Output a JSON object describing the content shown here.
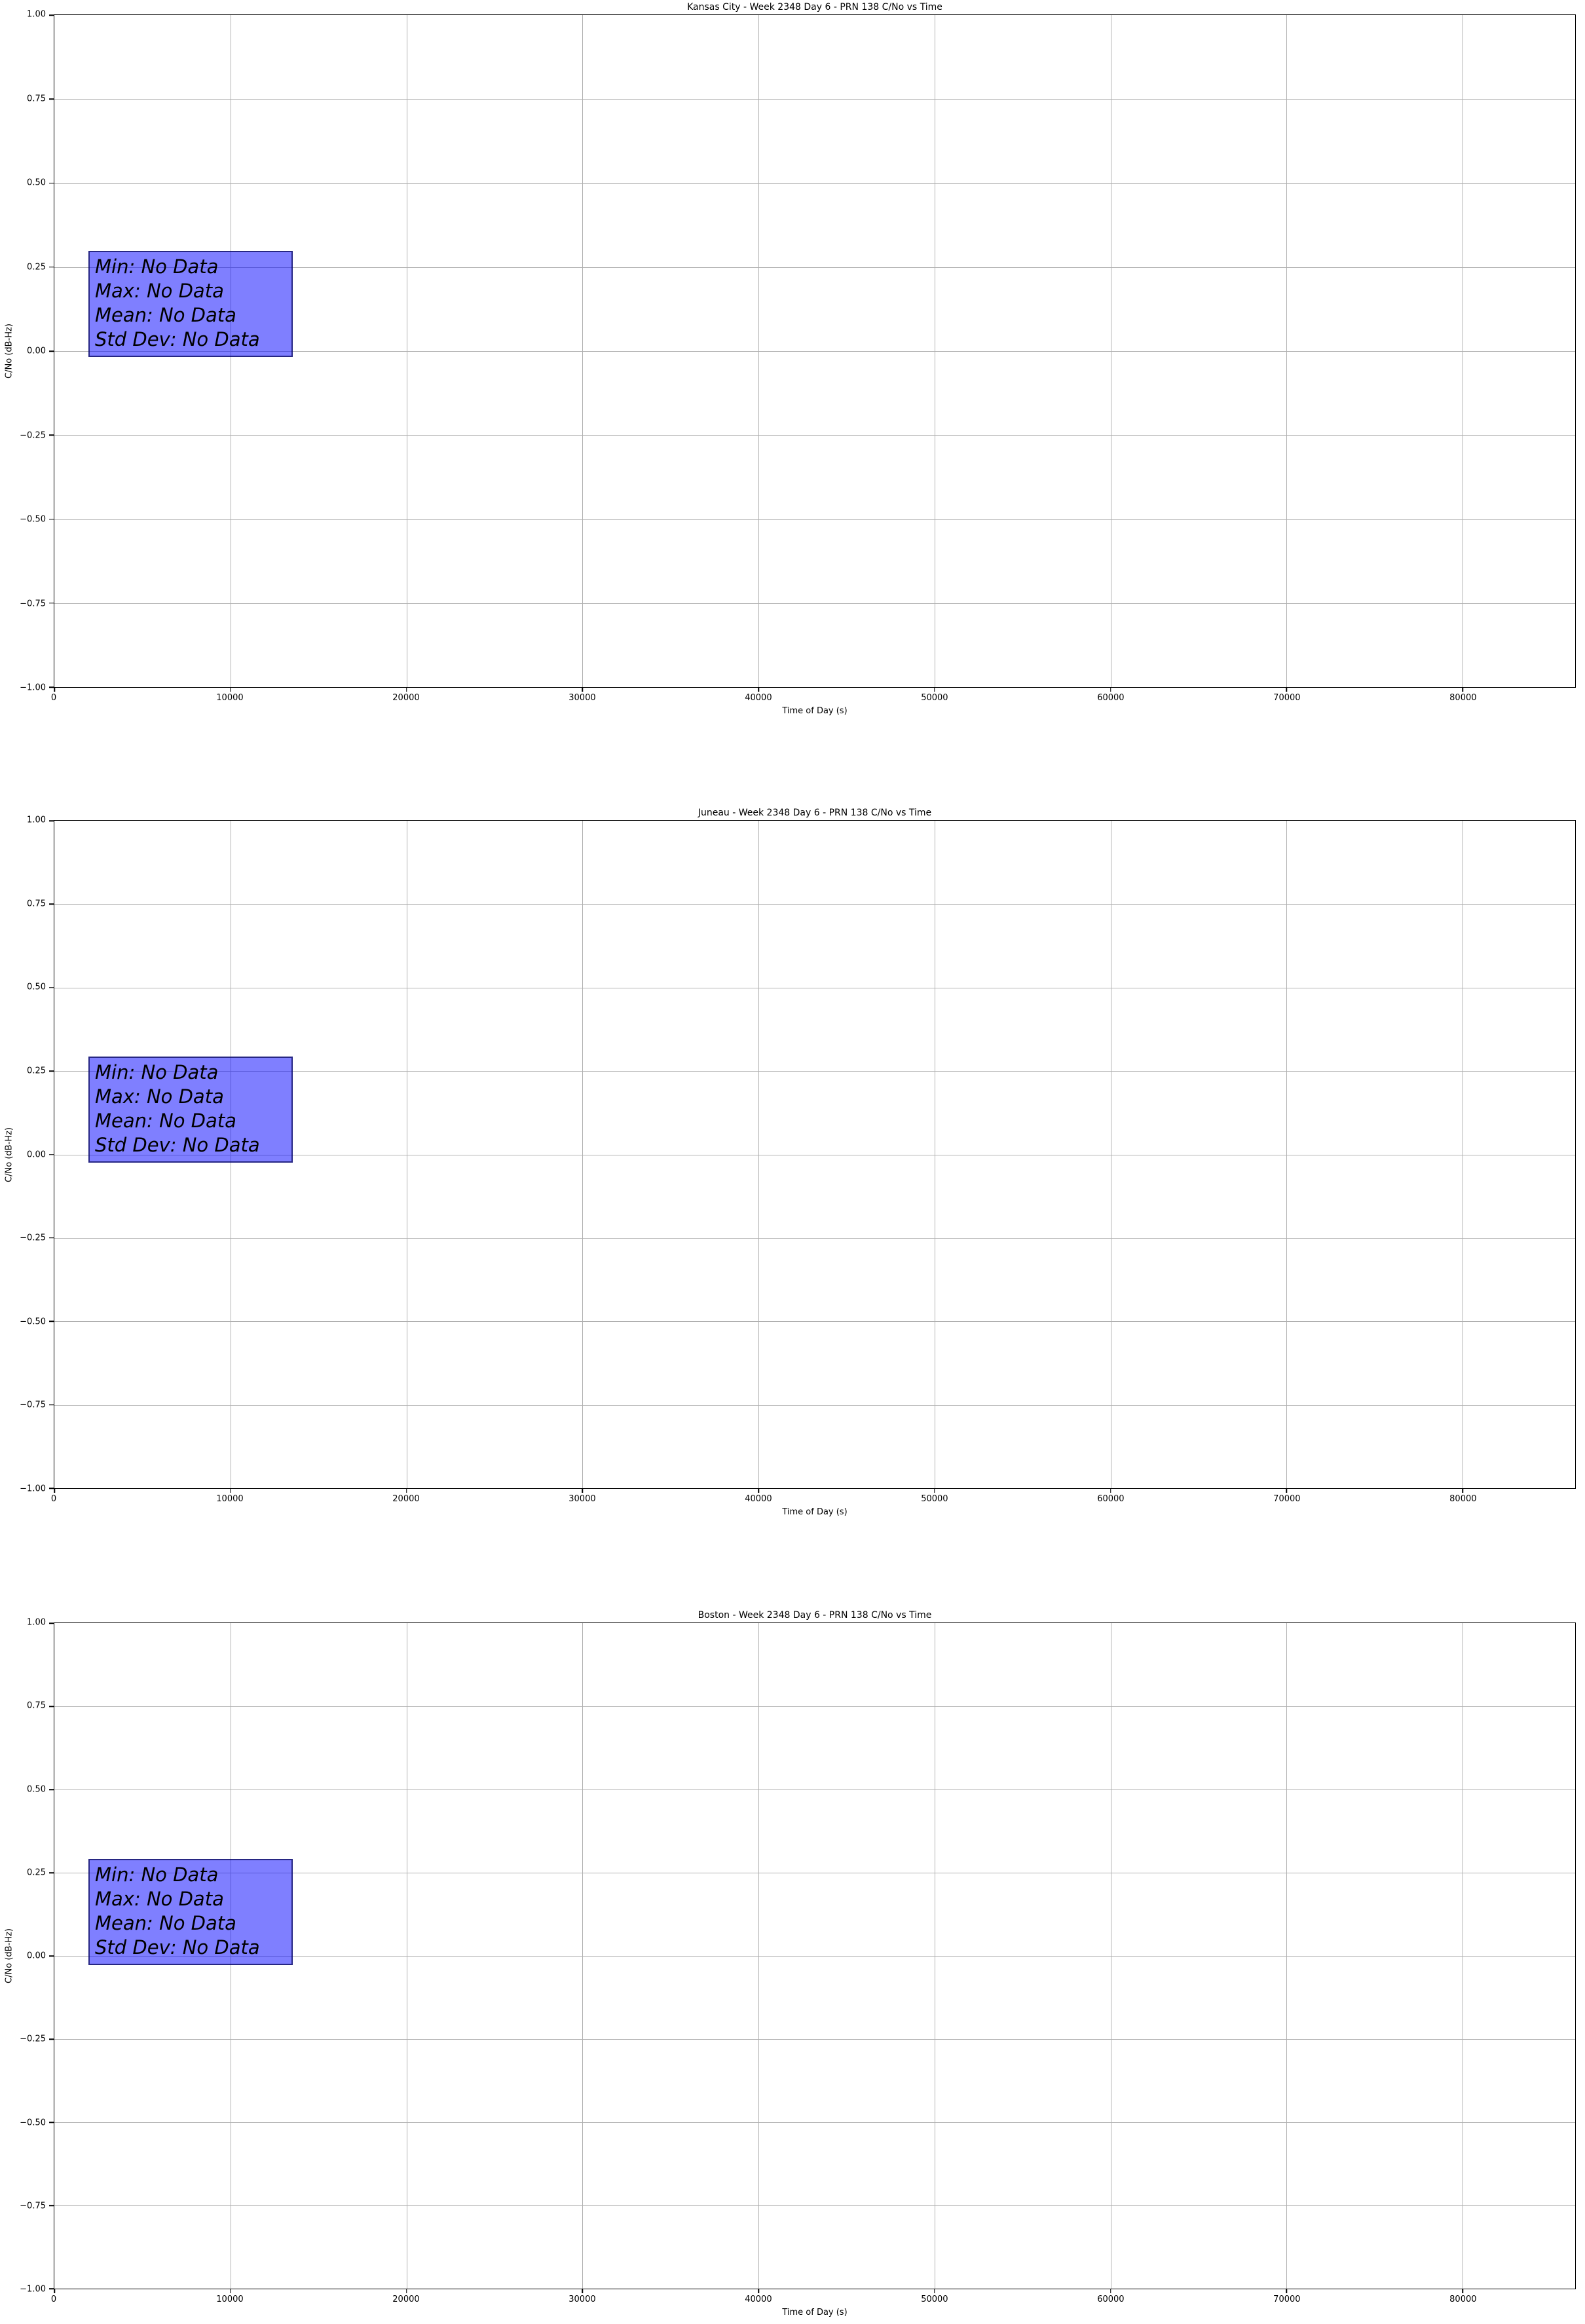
{
  "figure": {
    "background": "#ffffff"
  },
  "axes": {
    "xlabel": "Time of Day (s)",
    "ylabel": "C/No (dB-Hz)",
    "xlim": [
      0,
      86400
    ],
    "ylim": [
      -1.0,
      1.0
    ],
    "x_ticks": [
      0,
      10000,
      20000,
      30000,
      40000,
      50000,
      60000,
      70000,
      80000
    ],
    "x_tick_labels": [
      "0",
      "10000",
      "20000",
      "30000",
      "40000",
      "50000",
      "60000",
      "70000",
      "80000"
    ],
    "y_ticks": [
      1.0,
      0.75,
      0.5,
      0.25,
      0.0,
      -0.25,
      -0.5,
      -0.75,
      -1.0
    ],
    "y_tick_labels": [
      "1.00",
      "0.75",
      "0.50",
      "0.25",
      "0.00",
      "−0.25",
      "−0.50",
      "−0.75",
      "−1.00"
    ],
    "grid_color": "#b0b0b0"
  },
  "annotation": {
    "fill": "#8080ff",
    "border": "#3a3a8c",
    "lines": [
      "Min: No Data",
      "Max: No Data",
      "Mean: No Data",
      "Std Dev: No Data"
    ]
  },
  "charts": [
    {
      "title": "Kansas City - Week 2348 Day 6 - PRN 138 C/No vs Time"
    },
    {
      "title": "Juneau - Week 2348 Day 6 - PRN 138 C/No vs Time"
    },
    {
      "title": "Boston - Week 2348 Day 6 - PRN 138 C/No vs Time"
    }
  ],
  "chart_data": [
    {
      "type": "line",
      "title": "Kansas City - Week 2348 Day 6 - PRN 138 C/No vs Time",
      "xlabel": "Time of Day (s)",
      "ylabel": "C/No (dB-Hz)",
      "xlim": [
        0,
        86400
      ],
      "ylim": [
        -1.0,
        1.0
      ],
      "x_ticks": [
        0,
        10000,
        20000,
        30000,
        40000,
        50000,
        60000,
        70000,
        80000
      ],
      "y_ticks": [
        1.0,
        0.75,
        0.5,
        0.25,
        0.0,
        -0.25,
        -0.5,
        -0.75,
        -1.0
      ],
      "grid": true,
      "legend": false,
      "series": [],
      "annotations": [
        "Min: No Data",
        "Max: No Data",
        "Mean: No Data",
        "Std Dev: No Data"
      ]
    },
    {
      "type": "line",
      "title": "Juneau - Week 2348 Day 6 - PRN 138 C/No vs Time",
      "xlabel": "Time of Day (s)",
      "ylabel": "C/No (dB-Hz)",
      "xlim": [
        0,
        86400
      ],
      "ylim": [
        -1.0,
        1.0
      ],
      "x_ticks": [
        0,
        10000,
        20000,
        30000,
        40000,
        50000,
        60000,
        70000,
        80000
      ],
      "y_ticks": [
        1.0,
        0.75,
        0.5,
        0.25,
        0.0,
        -0.25,
        -0.5,
        -0.75,
        -1.0
      ],
      "grid": true,
      "legend": false,
      "series": [],
      "annotations": [
        "Min: No Data",
        "Max: No Data",
        "Mean: No Data",
        "Std Dev: No Data"
      ]
    },
    {
      "type": "line",
      "title": "Boston - Week 2348 Day 6 - PRN 138 C/No vs Time",
      "xlabel": "Time of Day (s)",
      "ylabel": "C/No (dB-Hz)",
      "xlim": [
        0,
        86400
      ],
      "ylim": [
        -1.0,
        1.0
      ],
      "x_ticks": [
        0,
        10000,
        20000,
        30000,
        40000,
        50000,
        60000,
        70000,
        80000
      ],
      "y_ticks": [
        1.0,
        0.75,
        0.5,
        0.25,
        0.0,
        -0.25,
        -0.5,
        -0.75,
        -1.0
      ],
      "grid": true,
      "legend": false,
      "series": [],
      "annotations": [
        "Min: No Data",
        "Max: No Data",
        "Mean: No Data",
        "Std Dev: No Data"
      ]
    }
  ]
}
